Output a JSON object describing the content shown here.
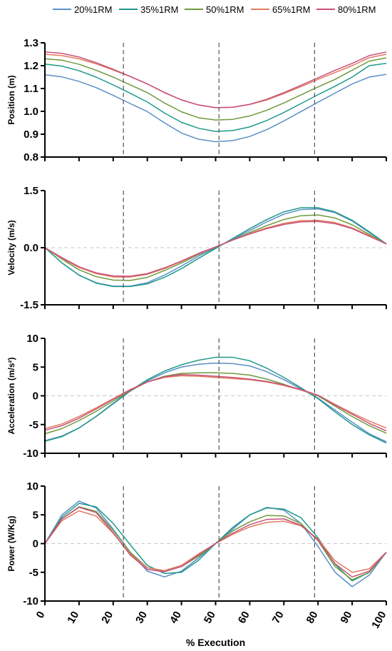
{
  "legend": [
    {
      "label": "20%1RM",
      "color": "#5b8fc7"
    },
    {
      "label": "35%1RM",
      "color": "#1f9a8a"
    },
    {
      "label": "50%1RM",
      "color": "#6e9a3c"
    },
    {
      "label": "65%1RM",
      "color": "#e07a5f"
    },
    {
      "label": "80%1RM",
      "color": "#c9507a"
    }
  ],
  "chart_data": [
    {
      "type": "line",
      "ylabel": "Position (m)",
      "ylim": [
        0.8,
        1.3
      ],
      "yticks": [
        "0.8",
        "0.9",
        "1.0",
        "1.1",
        "1.2",
        "1.3"
      ],
      "xlim": [
        0,
        100
      ],
      "vlines": [
        23,
        51,
        79
      ],
      "zero_line": false,
      "x": [
        0,
        5,
        10,
        15,
        20,
        25,
        30,
        35,
        40,
        45,
        50,
        55,
        60,
        65,
        70,
        75,
        80,
        85,
        90,
        95,
        100
      ],
      "series": [
        {
          "name": "20%1RM",
          "values": [
            1.16,
            1.151,
            1.131,
            1.104,
            1.07,
            1.034,
            0.999,
            0.95,
            0.905,
            0.878,
            0.867,
            0.872,
            0.89,
            0.92,
            0.958,
            0.999,
            1.04,
            1.08,
            1.12,
            1.15,
            1.162
          ]
        },
        {
          "name": "35%1RM",
          "values": [
            1.207,
            1.198,
            1.178,
            1.15,
            1.116,
            1.079,
            1.041,
            0.993,
            0.952,
            0.926,
            0.912,
            0.916,
            0.932,
            0.96,
            0.995,
            1.034,
            1.073,
            1.11,
            1.15,
            1.2,
            1.21
          ]
        },
        {
          "name": "50%1RM",
          "values": [
            1.23,
            1.224,
            1.206,
            1.18,
            1.15,
            1.116,
            1.082,
            1.037,
            0.998,
            0.972,
            0.962,
            0.965,
            0.98,
            1.005,
            1.037,
            1.072,
            1.107,
            1.14,
            1.18,
            1.22,
            1.234
          ]
        },
        {
          "name": "65%1RM",
          "values": [
            1.25,
            1.244,
            1.23,
            1.208,
            1.181,
            1.152,
            1.12,
            1.082,
            1.05,
            1.028,
            1.016,
            1.018,
            1.03,
            1.05,
            1.078,
            1.108,
            1.14,
            1.17,
            1.2,
            1.235,
            1.25
          ]
        },
        {
          "name": "80%1RM",
          "values": [
            1.26,
            1.254,
            1.238,
            1.213,
            1.184,
            1.153,
            1.12,
            1.083,
            1.05,
            1.028,
            1.016,
            1.018,
            1.031,
            1.053,
            1.082,
            1.114,
            1.147,
            1.18,
            1.21,
            1.244,
            1.26
          ]
        }
      ]
    },
    {
      "type": "line",
      "ylabel": "Velocity (m/s)",
      "ylim": [
        -1.5,
        1.5
      ],
      "yticks": [
        "-1.5",
        "0.0",
        "1.5"
      ],
      "xlim": [
        0,
        100
      ],
      "vlines": [
        23,
        51,
        79
      ],
      "zero_line": true,
      "x": [
        0,
        5,
        10,
        15,
        20,
        25,
        30,
        35,
        40,
        45,
        50,
        55,
        60,
        65,
        70,
        75,
        80,
        85,
        90,
        95,
        100
      ],
      "series": [
        {
          "name": "20%1RM",
          "values": [
            0,
            -0.4,
            -0.72,
            -0.92,
            -1.01,
            -1.01,
            -0.92,
            -0.72,
            -0.48,
            -0.22,
            0.0,
            0.22,
            0.45,
            0.68,
            0.88,
            1.0,
            1.02,
            0.92,
            0.7,
            0.4,
            0.1
          ]
        },
        {
          "name": "35%1RM",
          "values": [
            0,
            -0.4,
            -0.72,
            -0.93,
            -1.02,
            -1.02,
            -0.95,
            -0.78,
            -0.55,
            -0.28,
            -0.02,
            0.24,
            0.5,
            0.74,
            0.94,
            1.05,
            1.05,
            0.94,
            0.72,
            0.42,
            0.1
          ]
        },
        {
          "name": "50%1RM",
          "values": [
            0,
            -0.3,
            -0.58,
            -0.76,
            -0.85,
            -0.86,
            -0.78,
            -0.6,
            -0.4,
            -0.18,
            0.02,
            0.2,
            0.4,
            0.58,
            0.74,
            0.84,
            0.86,
            0.78,
            0.6,
            0.35,
            0.1
          ]
        },
        {
          "name": "65%1RM",
          "values": [
            0,
            -0.28,
            -0.52,
            -0.68,
            -0.77,
            -0.77,
            -0.7,
            -0.55,
            -0.36,
            -0.16,
            0.02,
            0.2,
            0.37,
            0.52,
            0.64,
            0.71,
            0.72,
            0.66,
            0.52,
            0.32,
            0.1
          ]
        },
        {
          "name": "80%1RM",
          "values": [
            0,
            -0.26,
            -0.5,
            -0.66,
            -0.74,
            -0.75,
            -0.68,
            -0.53,
            -0.35,
            -0.15,
            0.02,
            0.2,
            0.36,
            0.5,
            0.61,
            0.68,
            0.69,
            0.63,
            0.5,
            0.3,
            0.1
          ]
        }
      ]
    },
    {
      "type": "line",
      "ylabel": "Acceleration (m/s²)",
      "ylim": [
        -10,
        10
      ],
      "yticks": [
        "-10",
        "-5",
        "0",
        "5",
        "10"
      ],
      "xlim": [
        0,
        100
      ],
      "vlines": [
        23,
        51,
        79
      ],
      "zero_line": true,
      "x": [
        0,
        5,
        10,
        15,
        20,
        25,
        30,
        35,
        40,
        45,
        50,
        55,
        60,
        65,
        70,
        75,
        80,
        85,
        90,
        95,
        100
      ],
      "series": [
        {
          "name": "20%1RM",
          "values": [
            -7.8,
            -7.0,
            -5.6,
            -3.6,
            -1.4,
            0.8,
            2.6,
            4.0,
            5.0,
            5.5,
            5.7,
            5.6,
            5.2,
            4.2,
            2.8,
            1.2,
            -0.4,
            -2.5,
            -4.6,
            -6.6,
            -8.0
          ]
        },
        {
          "name": "35%1RM",
          "values": [
            -7.9,
            -7.1,
            -5.6,
            -3.6,
            -1.3,
            0.9,
            2.8,
            4.3,
            5.4,
            6.2,
            6.7,
            6.7,
            6.1,
            4.8,
            3.2,
            1.4,
            -0.5,
            -2.8,
            -5.0,
            -6.8,
            -8.2
          ]
        },
        {
          "name": "50%1RM",
          "values": [
            -6.6,
            -5.7,
            -4.3,
            -2.7,
            -0.9,
            0.9,
            2.4,
            3.4,
            3.9,
            4.0,
            4.0,
            3.9,
            3.6,
            2.9,
            2.0,
            1.0,
            0.0,
            -1.8,
            -3.6,
            -5.2,
            -6.5
          ]
        },
        {
          "name": "65%1RM",
          "values": [
            -5.7,
            -4.9,
            -3.6,
            -2.1,
            -0.5,
            1.1,
            2.4,
            3.2,
            3.5,
            3.4,
            3.2,
            3.0,
            2.8,
            2.4,
            1.8,
            1.0,
            0.1,
            -1.5,
            -3.0,
            -4.4,
            -5.6
          ]
        },
        {
          "name": "80%1RM",
          "values": [
            -6.0,
            -5.2,
            -3.9,
            -2.3,
            -0.6,
            1.0,
            2.4,
            3.3,
            3.7,
            3.6,
            3.4,
            3.2,
            2.9,
            2.5,
            1.9,
            1.1,
            0.1,
            -1.6,
            -3.2,
            -4.8,
            -6.1
          ]
        }
      ]
    },
    {
      "type": "line",
      "ylabel": "Power (W/Kg)",
      "ylim": [
        -10,
        10
      ],
      "yticks": [
        "-10",
        "-5",
        "0",
        "5",
        "10"
      ],
      "xlabel": "% Execution",
      "xlim": [
        0,
        100
      ],
      "xticks": [
        "0",
        "10",
        "20",
        "30",
        "40",
        "50",
        "60",
        "70",
        "80",
        "90",
        "100"
      ],
      "vlines": [
        23,
        51,
        79
      ],
      "zero_line": true,
      "x": [
        0,
        5,
        10,
        15,
        20,
        25,
        30,
        35,
        40,
        45,
        50,
        55,
        60,
        65,
        70,
        75,
        80,
        85,
        90,
        95,
        100
      ],
      "series": [
        {
          "name": "20%1RM",
          "values": [
            0,
            5.0,
            7.4,
            6.2,
            2.5,
            -1.5,
            -4.8,
            -5.8,
            -4.8,
            -2.5,
            0.0,
            2.5,
            5.0,
            6.3,
            5.8,
            3.5,
            -0.5,
            -5.0,
            -7.5,
            -5.5,
            -1.5
          ]
        },
        {
          "name": "35%1RM",
          "values": [
            0,
            4.6,
            7.0,
            6.4,
            3.5,
            -0.2,
            -3.8,
            -5.2,
            -5.0,
            -2.9,
            0.0,
            2.8,
            5.0,
            6.2,
            6.0,
            4.5,
            1.0,
            -3.6,
            -6.5,
            -5.0,
            -1.5
          ]
        },
        {
          "name": "50%1RM",
          "values": [
            0,
            4.3,
            6.4,
            5.6,
            2.3,
            -1.5,
            -4.2,
            -4.8,
            -4.0,
            -2.2,
            0.0,
            2.2,
            3.8,
            4.9,
            4.8,
            3.5,
            0.5,
            -4.0,
            -6.3,
            -5.0,
            -1.5
          ]
        },
        {
          "name": "65%1RM",
          "values": [
            0,
            4.0,
            5.7,
            4.8,
            1.8,
            -1.8,
            -4.2,
            -4.7,
            -3.8,
            -1.8,
            0.0,
            1.6,
            2.9,
            3.7,
            3.9,
            3.1,
            0.8,
            -3.0,
            -5.0,
            -4.4,
            -1.5
          ]
        },
        {
          "name": "80%1RM",
          "values": [
            0,
            4.3,
            6.3,
            5.4,
            1.9,
            -2.0,
            -4.5,
            -4.9,
            -4.0,
            -2.0,
            0.0,
            1.8,
            3.3,
            4.2,
            4.3,
            3.2,
            0.6,
            -3.5,
            -5.8,
            -4.8,
            -1.5
          ]
        }
      ]
    }
  ]
}
